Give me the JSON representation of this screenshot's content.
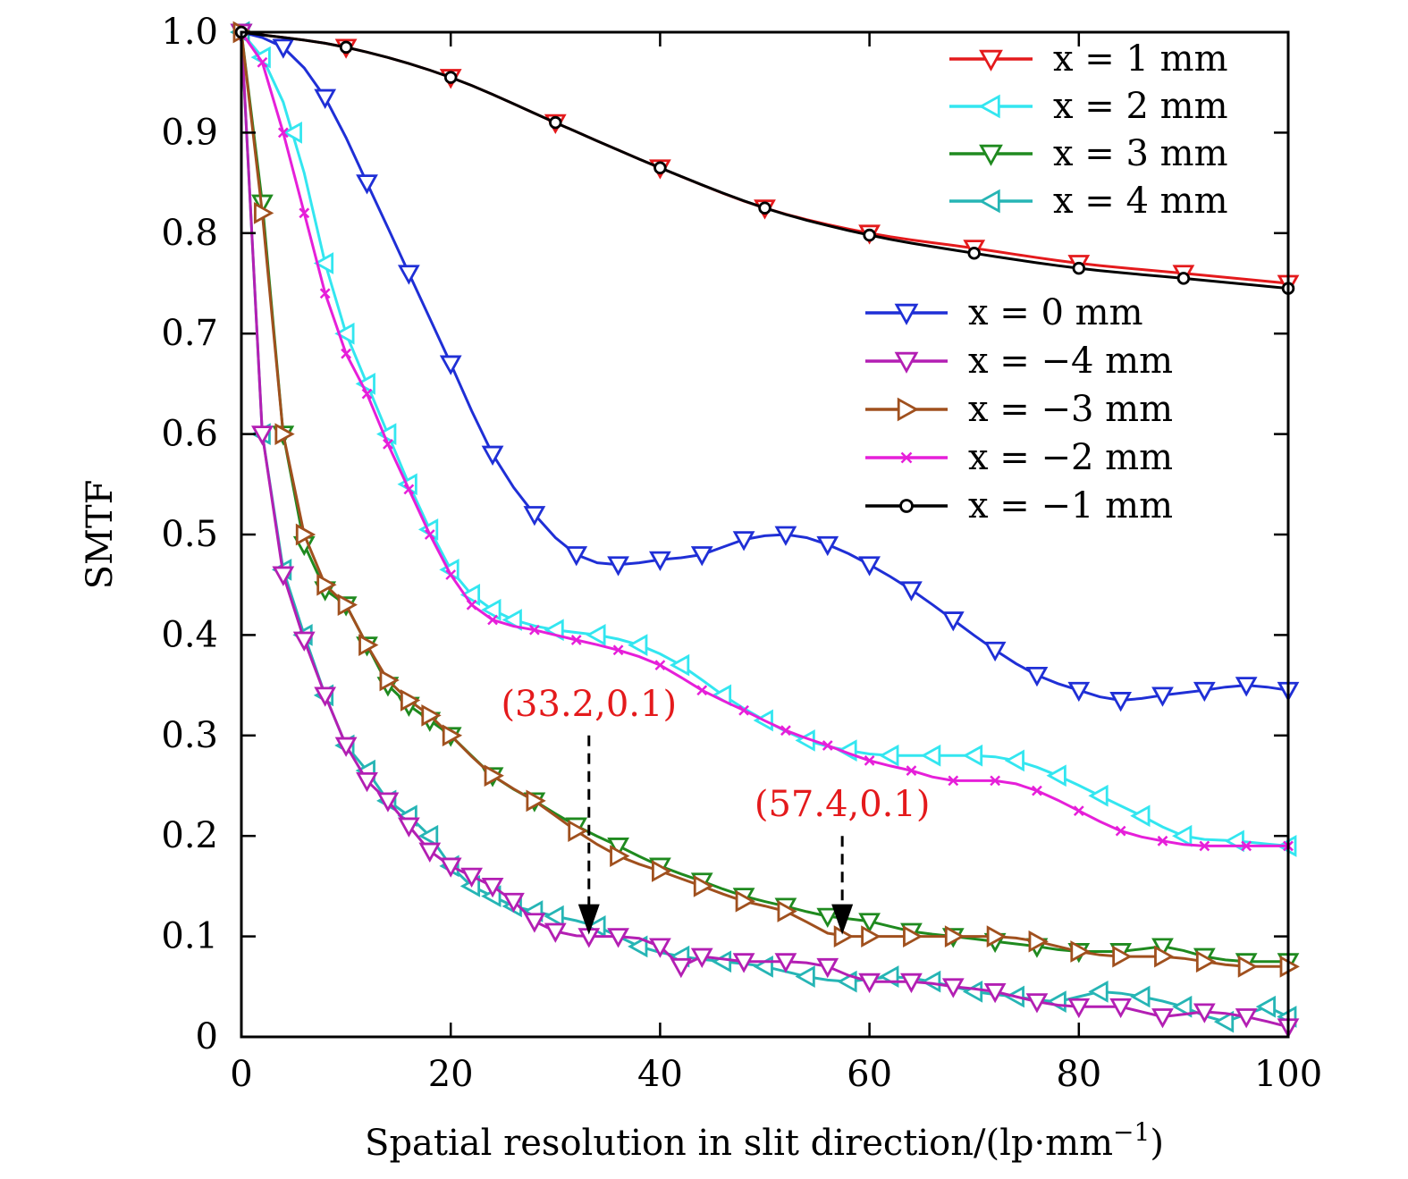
{
  "chart_data": {
    "type": "line",
    "xlabel": "Spatial resolution in slit direction/(lp·mm",
    "xlabel_sup": "−1",
    "xlabel_tail": ")",
    "ylabel": "SMTF",
    "xlim": [
      0,
      100
    ],
    "ylim": [
      0,
      1.0
    ],
    "xticks": [
      0,
      20,
      40,
      60,
      80,
      100
    ],
    "xtick_labels": [
      "0",
      "20",
      "40",
      "60",
      "80",
      "100"
    ],
    "yticks": [
      0,
      0.1,
      0.2,
      0.3,
      0.4,
      0.5,
      0.6,
      0.7,
      0.8,
      0.9,
      1.0
    ],
    "ytick_labels": [
      "0",
      "0.1",
      "0.2",
      "0.3",
      "0.4",
      "0.5",
      "0.6",
      "0.7",
      "0.8",
      "0.9",
      "1.0"
    ],
    "grid": false,
    "legend_groups": [
      {
        "placement": "top-right",
        "items": [
          0,
          1,
          2,
          3
        ]
      },
      {
        "placement": "center-right",
        "items": [
          4,
          5,
          6,
          7,
          8
        ]
      }
    ],
    "series": [
      {
        "name": "x = 1 mm",
        "color": "#e41a1c",
        "marker": "triangle-down",
        "x": [
          0,
          10,
          20,
          30,
          40,
          50,
          60,
          70,
          80,
          90,
          100
        ],
        "y": [
          1.0,
          0.985,
          0.955,
          0.91,
          0.865,
          0.825,
          0.8,
          0.785,
          0.77,
          0.76,
          0.75
        ]
      },
      {
        "name": "x = 2 mm",
        "color": "#33e6f0",
        "marker": "triangle-left",
        "x": [
          0,
          2,
          5,
          8,
          10,
          12,
          14,
          16,
          18,
          20,
          22,
          24,
          26,
          30,
          34,
          38,
          42,
          46,
          50,
          54,
          58,
          62,
          66,
          70,
          74,
          78,
          82,
          86,
          90,
          95,
          100
        ],
        "y": [
          1.0,
          0.975,
          0.9,
          0.77,
          0.7,
          0.65,
          0.6,
          0.55,
          0.505,
          0.465,
          0.44,
          0.425,
          0.415,
          0.405,
          0.4,
          0.39,
          0.37,
          0.34,
          0.315,
          0.295,
          0.285,
          0.28,
          0.28,
          0.28,
          0.275,
          0.26,
          0.24,
          0.22,
          0.2,
          0.195,
          0.19
        ]
      },
      {
        "name": "x = 3 mm",
        "color": "#1f8a1f",
        "marker": "triangle-down",
        "x": [
          0,
          2,
          4,
          6,
          8,
          10,
          12,
          14,
          16,
          18,
          20,
          24,
          28,
          32,
          36,
          40,
          44,
          48,
          52,
          56,
          60,
          64,
          68,
          72,
          76,
          80,
          84,
          88,
          92,
          96,
          100
        ],
        "y": [
          1.0,
          0.83,
          0.6,
          0.49,
          0.445,
          0.43,
          0.39,
          0.35,
          0.33,
          0.315,
          0.3,
          0.26,
          0.235,
          0.21,
          0.19,
          0.17,
          0.155,
          0.14,
          0.13,
          0.12,
          0.115,
          0.105,
          0.1,
          0.095,
          0.09,
          0.085,
          0.085,
          0.09,
          0.08,
          0.075,
          0.075
        ]
      },
      {
        "name": "x = 4 mm",
        "color": "#26b5b5",
        "marker": "triangle-left",
        "x": [
          0,
          2,
          4,
          6,
          8,
          10,
          12,
          14,
          16,
          18,
          20,
          22,
          24,
          26,
          28,
          30,
          34,
          38,
          42,
          46,
          50,
          54,
          58,
          62,
          66,
          70,
          74,
          78,
          82,
          86,
          90,
          94,
          98,
          100
        ],
        "y": [
          1.0,
          0.6,
          0.465,
          0.4,
          0.34,
          0.29,
          0.265,
          0.235,
          0.22,
          0.2,
          0.17,
          0.15,
          0.14,
          0.13,
          0.125,
          0.12,
          0.11,
          0.09,
          0.08,
          0.075,
          0.07,
          0.06,
          0.055,
          0.06,
          0.055,
          0.045,
          0.04,
          0.035,
          0.045,
          0.04,
          0.03,
          0.015,
          0.03,
          0.02
        ]
      },
      {
        "name": "x = 0 mm",
        "color": "#1f2fd6",
        "marker": "triangle-down",
        "x": [
          0,
          4,
          8,
          12,
          16,
          20,
          24,
          28,
          32,
          36,
          40,
          44,
          48,
          52,
          56,
          60,
          64,
          68,
          72,
          76,
          80,
          84,
          88,
          92,
          96,
          100
        ],
        "y": [
          1.0,
          0.985,
          0.935,
          0.85,
          0.76,
          0.67,
          0.58,
          0.52,
          0.48,
          0.47,
          0.475,
          0.48,
          0.495,
          0.5,
          0.49,
          0.47,
          0.445,
          0.415,
          0.385,
          0.36,
          0.345,
          0.335,
          0.34,
          0.345,
          0.35,
          0.345
        ]
      },
      {
        "name": "x = −4 mm",
        "color": "#b31fb3",
        "marker": "triangle-down",
        "x": [
          0,
          2,
          4,
          6,
          8,
          10,
          12,
          14,
          16,
          18,
          20,
          22,
          24,
          26,
          28,
          30,
          33.2,
          36,
          40,
          42,
          44,
          48,
          52,
          56,
          60,
          64,
          68,
          72,
          76,
          80,
          84,
          88,
          92,
          96,
          100
        ],
        "y": [
          1.0,
          0.6,
          0.46,
          0.395,
          0.34,
          0.29,
          0.255,
          0.235,
          0.21,
          0.185,
          0.17,
          0.16,
          0.15,
          0.135,
          0.115,
          0.105,
          0.1,
          0.1,
          0.09,
          0.07,
          0.08,
          0.075,
          0.075,
          0.07,
          0.055,
          0.055,
          0.05,
          0.045,
          0.035,
          0.03,
          0.03,
          0.02,
          0.025,
          0.02,
          0.01
        ]
      },
      {
        "name": "x = −3 mm",
        "color": "#a0501e",
        "marker": "triangle-right",
        "x": [
          0,
          2,
          4,
          6,
          8,
          10,
          12,
          14,
          16,
          18,
          20,
          24,
          28,
          32,
          36,
          40,
          44,
          48,
          52,
          57.4,
          60,
          64,
          68,
          72,
          76,
          80,
          84,
          88,
          92,
          96,
          100
        ],
        "y": [
          1.0,
          0.82,
          0.6,
          0.5,
          0.45,
          0.43,
          0.39,
          0.355,
          0.335,
          0.32,
          0.3,
          0.26,
          0.235,
          0.205,
          0.18,
          0.165,
          0.15,
          0.135,
          0.125,
          0.1,
          0.1,
          0.1,
          0.1,
          0.1,
          0.095,
          0.085,
          0.08,
          0.08,
          0.075,
          0.07,
          0.07
        ]
      },
      {
        "name": "x = −2 mm",
        "color": "#e61fd9",
        "marker": "x",
        "x": [
          0,
          2,
          4,
          6,
          8,
          10,
          12,
          14,
          16,
          18,
          20,
          22,
          24,
          28,
          32,
          36,
          40,
          44,
          48,
          52,
          56,
          60,
          64,
          68,
          72,
          76,
          80,
          84,
          88,
          92,
          96,
          100
        ],
        "y": [
          1.0,
          0.97,
          0.9,
          0.82,
          0.74,
          0.68,
          0.64,
          0.59,
          0.545,
          0.5,
          0.46,
          0.43,
          0.415,
          0.405,
          0.395,
          0.385,
          0.37,
          0.345,
          0.325,
          0.305,
          0.29,
          0.275,
          0.265,
          0.255,
          0.255,
          0.245,
          0.225,
          0.205,
          0.195,
          0.19,
          0.19,
          0.19
        ]
      },
      {
        "name": "x = −1 mm",
        "color": "#000000",
        "marker": "circle",
        "x": [
          0,
          10,
          20,
          30,
          40,
          50,
          60,
          70,
          80,
          90,
          100
        ],
        "y": [
          1.0,
          0.985,
          0.955,
          0.91,
          0.865,
          0.825,
          0.798,
          0.78,
          0.765,
          0.755,
          0.745
        ]
      }
    ],
    "annotations": [
      {
        "text": "(33.2,0.1)",
        "color": "#e41a1c",
        "arrow_from": [
          33.2,
          0.3
        ],
        "arrow_to": [
          33.2,
          0.1
        ]
      },
      {
        "text": "(57.4,0.1)",
        "color": "#e41a1c",
        "arrow_from": [
          57.4,
          0.2
        ],
        "arrow_to": [
          57.4,
          0.1
        ]
      }
    ]
  }
}
